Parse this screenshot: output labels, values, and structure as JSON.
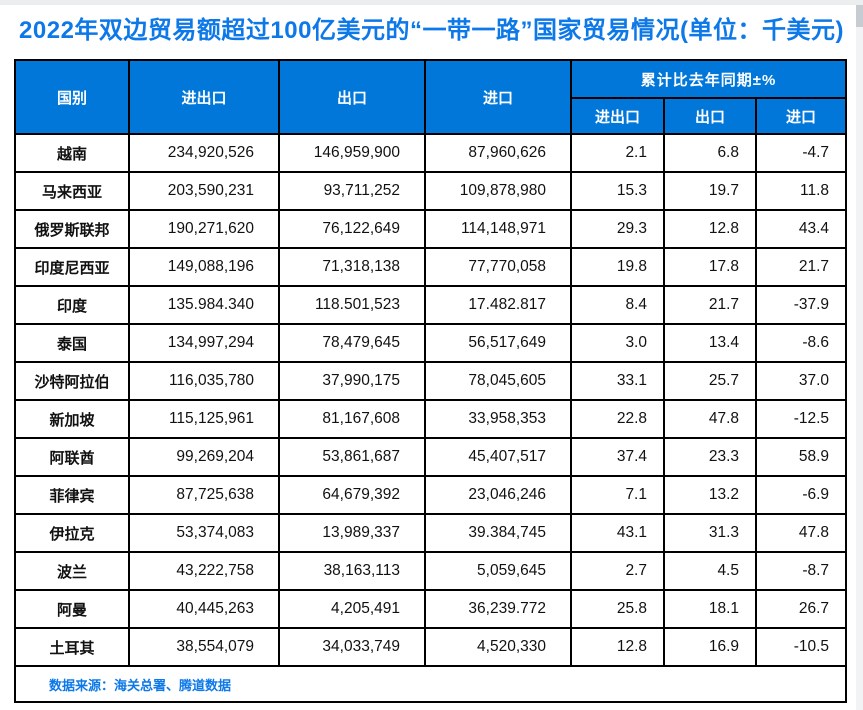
{
  "colors": {
    "title_blue": "#0d78e8",
    "header_bg": "#0077d9",
    "header_text": "#ffffff",
    "border_black": "#000000",
    "source_blue": "#0d78e8"
  },
  "chart_data": {
    "type": "table",
    "title": "2022年双边贸易额超过100亿美元的“一带一路”国家贸易情况(单位：千美元)",
    "group_header": "累计比去年同期±%",
    "columns": [
      "国别",
      "进出口",
      "出口",
      "进口",
      "进出口",
      "出口",
      "进口"
    ],
    "rows": [
      [
        "越南",
        "234,920,526",
        "146,959,900",
        "87,960,626",
        "2.1",
        "6.8",
        "-4.7"
      ],
      [
        "马来西亚",
        "203,590,231",
        "93,711,252",
        "109,878,980",
        "15.3",
        "19.7",
        "11.8"
      ],
      [
        "俄罗斯联邦",
        "190,271,620",
        "76,122,649",
        "114,148,971",
        "29.3",
        "12.8",
        "43.4"
      ],
      [
        "印度尼西亚",
        "149,088,196",
        "71,318,138",
        "77,770,058",
        "19.8",
        "17.8",
        "21.7"
      ],
      [
        "印度",
        "135.984.340",
        "118.501,523",
        "17.482.817",
        "8.4",
        "21.7",
        "-37.9"
      ],
      [
        "泰国",
        "134,997,294",
        "78,479,645",
        "56,517,649",
        "3.0",
        "13.4",
        "-8.6"
      ],
      [
        "沙特阿拉伯",
        "116,035,780",
        "37,990,175",
        "78,045,605",
        "33.1",
        "25.7",
        "37.0"
      ],
      [
        "新加坡",
        "115,125,961",
        "81,167,608",
        "33,958,353",
        "22.8",
        "47.8",
        "-12.5"
      ],
      [
        "阿联酋",
        "99,269,204",
        "53,861,687",
        "45,407,517",
        "37.4",
        "23.3",
        "58.9"
      ],
      [
        "菲律宾",
        "87,725,638",
        "64,679,392",
        "23,046,246",
        "7.1",
        "13.2",
        "-6.9"
      ],
      [
        "伊拉克",
        "53,374,083",
        "13,989,337",
        "39.384,745",
        "43.1",
        "31.3",
        "47.8"
      ],
      [
        "波兰",
        "43,222,758",
        "38,163,113",
        "5,059,645",
        "2.7",
        "4.5",
        "-8.7"
      ],
      [
        "阿曼",
        "40,445,263",
        "4,205,491",
        "36,239.772",
        "25.8",
        "18.1",
        "26.7"
      ],
      [
        "土耳其",
        "38,554,079",
        "34,033,749",
        "4,520,330",
        "12.8",
        "16.9",
        "-10.5"
      ]
    ],
    "source": "数据来源：海关总署、腾道数据"
  }
}
